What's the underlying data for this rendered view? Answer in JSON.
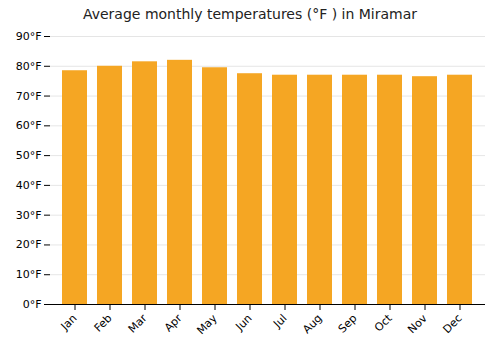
{
  "chart_data": {
    "type": "bar",
    "title": "Average monthly temperatures (°F ) in Miramar",
    "categories": [
      "Jan",
      "Feb",
      "Mar",
      "Apr",
      "May",
      "Jun",
      "Jul",
      "Aug",
      "Sep",
      "Oct",
      "Nov",
      "Dec"
    ],
    "values": [
      78.5,
      80.0,
      81.5,
      82.0,
      79.5,
      77.5,
      77.0,
      77.0,
      77.0,
      77.0,
      76.5,
      77.0
    ],
    "color": "#F5A623",
    "ylim": [
      0,
      90
    ],
    "yticks": [
      {
        "value": 0,
        "label": "0°F"
      },
      {
        "value": 10,
        "label": "10°F"
      },
      {
        "value": 20,
        "label": "20°F"
      },
      {
        "value": 30,
        "label": "30°F"
      },
      {
        "value": 40,
        "label": "40°F"
      },
      {
        "value": 50,
        "label": "50°F"
      },
      {
        "value": 60,
        "label": "60°F"
      },
      {
        "value": 70,
        "label": "70°F"
      },
      {
        "value": 80,
        "label": "80°F"
      },
      {
        "value": 90,
        "label": "90°F"
      }
    ],
    "grid": true
  }
}
